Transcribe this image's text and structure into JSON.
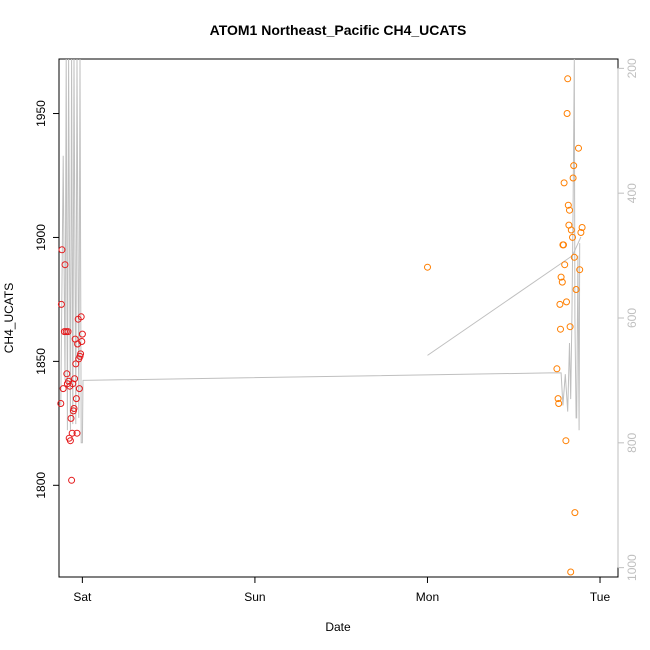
{
  "chart_data": {
    "type": "scatter",
    "title": "ATOM1 Northeast_Pacific CH4_UCATS",
    "xlabel": "Date",
    "ylabel": "CH4_UCATS",
    "x_axis": {
      "type": "date",
      "range": [
        "2016-07-29T20:45",
        "2016-08-02T02:30"
      ],
      "ticks": [
        {
          "label": "Sat",
          "value": "2016-07-30T00:00"
        },
        {
          "label": "Sun",
          "value": "2016-07-31T00:00"
        },
        {
          "label": "Mon",
          "value": "2016-08-01T00:00"
        },
        {
          "label": "Tue",
          "value": "2016-08-02T00:00"
        }
      ]
    },
    "y_axis": {
      "range": [
        1763,
        1972
      ],
      "ticks": [
        1800,
        1850,
        1900,
        1950
      ]
    },
    "y2_axis": {
      "reversed": true,
      "range": [
        1015,
        185
      ],
      "ticks": [
        200,
        400,
        600,
        800,
        1000
      ],
      "color": "#bfbfbf"
    },
    "grid": false,
    "legend": "none",
    "series": [
      {
        "color": "#e41a1c",
        "points": [
          {
            "x": "2016-07-29T21:00",
            "y": 1833
          },
          {
            "x": "2016-07-29T21:05",
            "y": 1873
          },
          {
            "x": "2016-07-29T21:10",
            "y": 1895
          },
          {
            "x": "2016-07-29T21:20",
            "y": 1839
          },
          {
            "x": "2016-07-29T21:30",
            "y": 1862
          },
          {
            "x": "2016-07-29T21:35",
            "y": 1889
          },
          {
            "x": "2016-07-29T21:45",
            "y": 1862
          },
          {
            "x": "2016-07-29T21:50",
            "y": 1845
          },
          {
            "x": "2016-07-29T21:55",
            "y": 1841
          },
          {
            "x": "2016-07-29T22:00",
            "y": 1862
          },
          {
            "x": "2016-07-29T22:05",
            "y": 1842
          },
          {
            "x": "2016-07-29T22:10",
            "y": 1819
          },
          {
            "x": "2016-07-29T22:15",
            "y": 1840
          },
          {
            "x": "2016-07-29T22:20",
            "y": 1818
          },
          {
            "x": "2016-07-29T22:25",
            "y": 1827
          },
          {
            "x": "2016-07-29T22:30",
            "y": 1802
          },
          {
            "x": "2016-07-29T22:35",
            "y": 1821
          },
          {
            "x": "2016-07-29T22:40",
            "y": 1841
          },
          {
            "x": "2016-07-29T22:45",
            "y": 1830
          },
          {
            "x": "2016-07-29T22:50",
            "y": 1831
          },
          {
            "x": "2016-07-29T22:55",
            "y": 1843
          },
          {
            "x": "2016-07-29T23:00",
            "y": 1859
          },
          {
            "x": "2016-07-29T23:05",
            "y": 1849
          },
          {
            "x": "2016-07-29T23:10",
            "y": 1835
          },
          {
            "x": "2016-07-29T23:15",
            "y": 1821
          },
          {
            "x": "2016-07-29T23:20",
            "y": 1857
          },
          {
            "x": "2016-07-29T23:25",
            "y": 1867
          },
          {
            "x": "2016-07-29T23:30",
            "y": 1851
          },
          {
            "x": "2016-07-29T23:35",
            "y": 1839
          },
          {
            "x": "2016-07-29T23:40",
            "y": 1852
          },
          {
            "x": "2016-07-29T23:45",
            "y": 1853
          },
          {
            "x": "2016-07-29T23:50",
            "y": 1868
          },
          {
            "x": "2016-07-29T23:55",
            "y": 1858
          },
          {
            "x": "2016-07-30T00:00",
            "y": 1861
          }
        ]
      },
      {
        "color": "#ff7f00",
        "points": [
          {
            "x": "2016-08-01T00:00",
            "y": 1888
          },
          {
            "x": "2016-08-01T18:00",
            "y": 1847
          },
          {
            "x": "2016-08-01T18:10",
            "y": 1835
          },
          {
            "x": "2016-08-01T18:15",
            "y": 1833
          },
          {
            "x": "2016-08-01T18:25",
            "y": 1873
          },
          {
            "x": "2016-08-01T18:30",
            "y": 1863
          },
          {
            "x": "2016-08-01T18:35",
            "y": 1884
          },
          {
            "x": "2016-08-01T18:45",
            "y": 1882
          },
          {
            "x": "2016-08-01T18:50",
            "y": 1897
          },
          {
            "x": "2016-08-01T18:55",
            "y": 1897
          },
          {
            "x": "2016-08-01T19:00",
            "y": 1922
          },
          {
            "x": "2016-08-01T19:05",
            "y": 1889
          },
          {
            "x": "2016-08-01T19:15",
            "y": 1818
          },
          {
            "x": "2016-08-01T19:20",
            "y": 1874
          },
          {
            "x": "2016-08-01T19:25",
            "y": 1950
          },
          {
            "x": "2016-08-01T19:30",
            "y": 1964
          },
          {
            "x": "2016-08-01T19:35",
            "y": 1913
          },
          {
            "x": "2016-08-01T19:40",
            "y": 1905
          },
          {
            "x": "2016-08-01T19:45",
            "y": 1911
          },
          {
            "x": "2016-08-01T19:50",
            "y": 1864
          },
          {
            "x": "2016-08-01T19:55",
            "y": 1765
          },
          {
            "x": "2016-08-01T20:00",
            "y": 1903
          },
          {
            "x": "2016-08-01T20:10",
            "y": 1900
          },
          {
            "x": "2016-08-01T20:15",
            "y": 1924
          },
          {
            "x": "2016-08-01T20:20",
            "y": 1929
          },
          {
            "x": "2016-08-01T20:25",
            "y": 1892
          },
          {
            "x": "2016-08-01T20:30",
            "y": 1789
          },
          {
            "x": "2016-08-01T20:40",
            "y": 1879
          },
          {
            "x": "2016-08-01T21:00",
            "y": 1936
          },
          {
            "x": "2016-08-01T21:10",
            "y": 1887
          },
          {
            "x": "2016-08-01T21:20",
            "y": 1902
          },
          {
            "x": "2016-08-01T21:30",
            "y": 1904
          }
        ]
      }
    ],
    "overlay_line": {
      "axis": "y2",
      "color": "#bfbfbf",
      "segments": [
        [
          {
            "x": "2016-07-29T21:00",
            "y": 740
          },
          {
            "x": "2016-07-29T21:20",
            "y": 340
          },
          {
            "x": "2016-07-29T21:35",
            "y": 700
          },
          {
            "x": "2016-07-29T21:45",
            "y": 185
          },
          {
            "x": "2016-07-29T21:55",
            "y": 780
          },
          {
            "x": "2016-07-29T22:05",
            "y": 185
          },
          {
            "x": "2016-07-29T22:20",
            "y": 780
          },
          {
            "x": "2016-07-29T22:30",
            "y": 185
          },
          {
            "x": "2016-07-29T22:40",
            "y": 770
          },
          {
            "x": "2016-07-29T22:50",
            "y": 185
          },
          {
            "x": "2016-07-29T23:05",
            "y": 770
          },
          {
            "x": "2016-07-29T23:15",
            "y": 185
          },
          {
            "x": "2016-07-29T23:30",
            "y": 760
          },
          {
            "x": "2016-07-29T23:40",
            "y": 185
          },
          {
            "x": "2016-07-29T23:50",
            "y": 800
          },
          {
            "x": "2016-07-30T00:00",
            "y": 800
          },
          {
            "x": "2016-07-30T00:05",
            "y": 700
          },
          {
            "x": "2016-08-01T17:00",
            "y": 688
          },
          {
            "x": "2016-08-01T18:35",
            "y": 688
          },
          {
            "x": "2016-08-01T18:50",
            "y": 740
          },
          {
            "x": "2016-08-01T19:10",
            "y": 690
          },
          {
            "x": "2016-08-01T19:30",
            "y": 750
          },
          {
            "x": "2016-08-01T19:45",
            "y": 640
          },
          {
            "x": "2016-08-01T19:55",
            "y": 730
          },
          {
            "x": "2016-08-01T20:05",
            "y": 600
          },
          {
            "x": "2016-08-01T20:15",
            "y": 420
          },
          {
            "x": "2016-08-01T20:25",
            "y": 185
          },
          {
            "x": "2016-08-01T20:30",
            "y": 600
          },
          {
            "x": "2016-08-01T20:40",
            "y": 760
          },
          {
            "x": "2016-08-01T20:45",
            "y": 760
          },
          {
            "x": "2016-08-01T20:55",
            "y": 500
          },
          {
            "x": "2016-08-01T21:05",
            "y": 780
          },
          {
            "x": "2016-08-01T21:10",
            "y": 480
          }
        ],
        [
          {
            "x": "2016-08-01T00:00",
            "y": 660
          },
          {
            "x": "2016-08-01T20:10",
            "y": 500
          },
          {
            "x": "2016-08-01T21:20",
            "y": 470
          }
        ]
      ]
    }
  }
}
